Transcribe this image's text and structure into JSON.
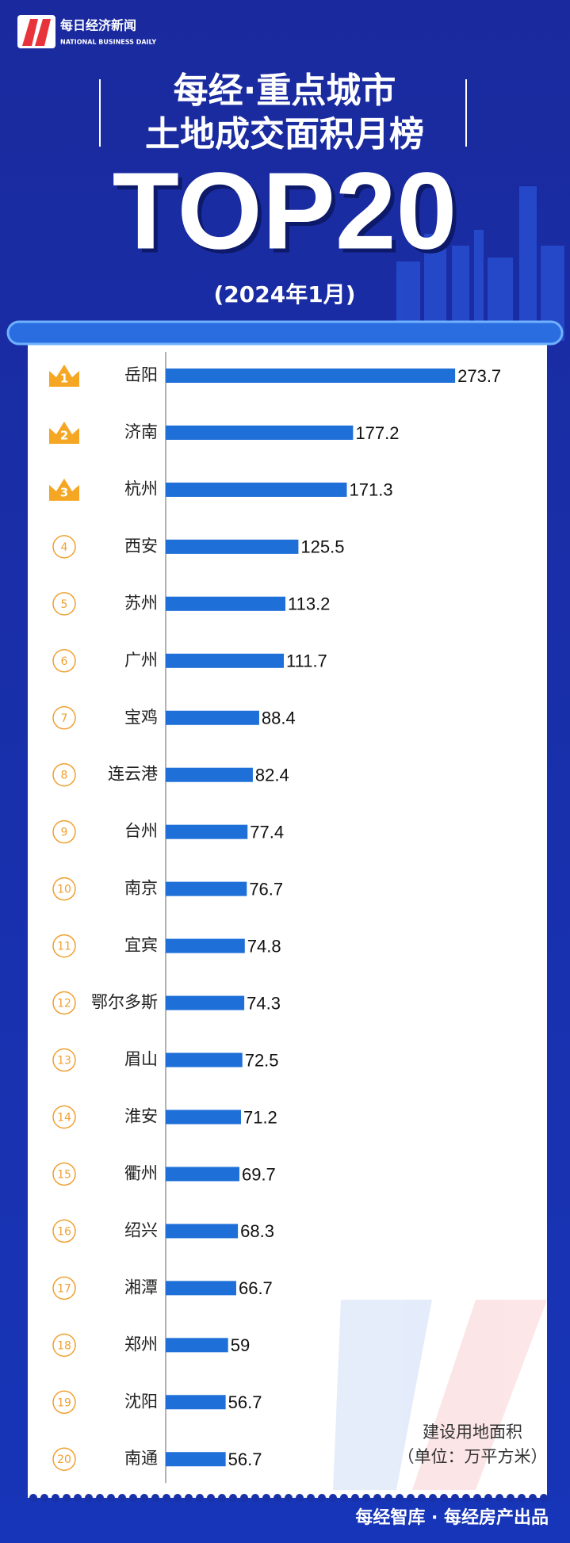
{
  "header": {
    "logo_cn": "每日经济新闻",
    "logo_en": "NATIONAL BUSINESS DAILY",
    "title_line1": "每经·重点城市",
    "title_line2": "土地成交面积月榜",
    "headline": "TOP20",
    "period": "(2024年1月)"
  },
  "chart_data": {
    "type": "bar",
    "orientation": "horizontal",
    "color": "#1f6fd8",
    "ranks": [
      1,
      2,
      3,
      4,
      5,
      6,
      7,
      8,
      9,
      10,
      11,
      12,
      13,
      14,
      15,
      16,
      17,
      18,
      19,
      20
    ],
    "categories": [
      "岳阳",
      "济南",
      "杭州",
      "西安",
      "苏州",
      "广州",
      "宝鸡",
      "连云港",
      "台州",
      "南京",
      "宜宾",
      "鄂尔多斯",
      "眉山",
      "淮安",
      "衢州",
      "绍兴",
      "湘潭",
      "郑州",
      "沈阳",
      "南通"
    ],
    "values": [
      273.7,
      177.2,
      171.3,
      125.5,
      113.2,
      111.7,
      88.4,
      82.4,
      77.4,
      76.7,
      74.8,
      74.3,
      72.5,
      71.2,
      69.7,
      68.3,
      66.7,
      59,
      56.7,
      56.7
    ],
    "note_line1": "建设用地面积",
    "note_line2": "（单位：万平方米）"
  },
  "footer": {
    "credit": "每经智库 · 每经房产出品"
  }
}
